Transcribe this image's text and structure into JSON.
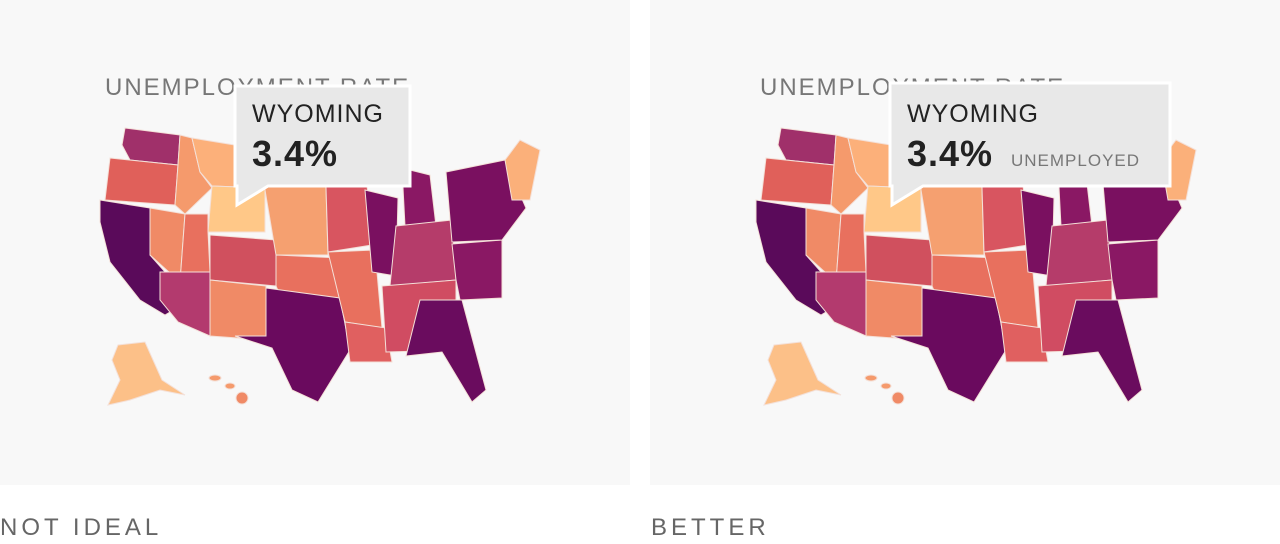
{
  "panels": [
    {
      "title": "UNEMPLOYMENT RATE",
      "tooltip": {
        "state": "WYOMING",
        "value": "3.4%"
      },
      "caption": "NOT IDEAL"
    },
    {
      "title": "UNEMPLOYMENT RATE",
      "tooltip": {
        "state": "WYOMING",
        "value": "3.4%",
        "unit": "UNEMPLOYED"
      },
      "caption": "BETTER"
    }
  ]
}
